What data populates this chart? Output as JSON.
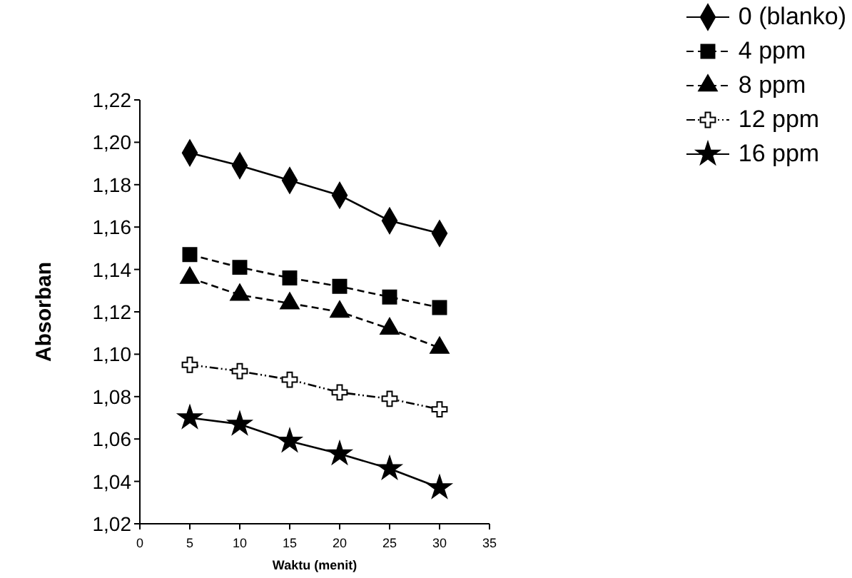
{
  "chart_data": {
    "type": "line",
    "xlabel": "Waktu (menit)",
    "ylabel": "Absorban",
    "x": [
      5,
      10,
      15,
      20,
      25,
      30
    ],
    "xlim": [
      0,
      35
    ],
    "xticks": [
      0,
      5,
      10,
      15,
      20,
      25,
      30,
      35
    ],
    "ylim": [
      1.02,
      1.22
    ],
    "yticks": [
      {
        "value": 1.02,
        "label": "1,02"
      },
      {
        "value": 1.04,
        "label": "1,04"
      },
      {
        "value": 1.06,
        "label": "1,06"
      },
      {
        "value": 1.08,
        "label": "1,08"
      },
      {
        "value": 1.1,
        "label": "1,10"
      },
      {
        "value": 1.12,
        "label": "1,12"
      },
      {
        "value": 1.14,
        "label": "1,14"
      },
      {
        "value": 1.16,
        "label": "1,16"
      },
      {
        "value": 1.18,
        "label": "1,18"
      },
      {
        "value": 1.2,
        "label": "1,20"
      },
      {
        "value": 1.22,
        "label": "1,22"
      }
    ],
    "grid": false,
    "legend": "top right",
    "series": [
      {
        "name": "0 (blanko)",
        "color": "#000000",
        "marker": "diamond",
        "line_style": "solid",
        "values": [
          1.195,
          1.189,
          1.182,
          1.175,
          1.163,
          1.157
        ]
      },
      {
        "name": "4 ppm",
        "color": "#000000",
        "marker": "square",
        "line_style": "dashed",
        "values": [
          1.147,
          1.141,
          1.136,
          1.132,
          1.127,
          1.122
        ]
      },
      {
        "name": "8 ppm",
        "color": "#000000",
        "marker": "triangle",
        "line_style": "dashed",
        "values": [
          1.136,
          1.128,
          1.124,
          1.12,
          1.112,
          1.103
        ]
      },
      {
        "name": "12 ppm",
        "color": "#000000",
        "marker": "cross",
        "line_style": "dotted",
        "values": [
          1.095,
          1.092,
          1.088,
          1.082,
          1.079,
          1.074
        ]
      },
      {
        "name": "16 ppm",
        "color": "#000000",
        "marker": "star",
        "line_style": "solid",
        "values": [
          1.07,
          1.067,
          1.059,
          1.053,
          1.046,
          1.037
        ]
      }
    ]
  }
}
